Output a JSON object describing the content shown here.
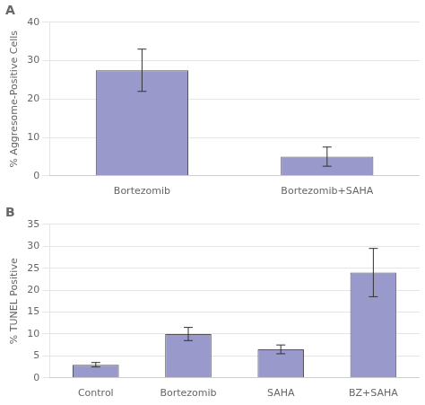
{
  "chart_data": [
    {
      "type": "bar",
      "title": "A",
      "categories": [
        "Bortezomib",
        "Bortezomib+SAHA"
      ],
      "values": [
        27.5,
        5.0
      ],
      "errors": [
        5.5,
        2.5
      ],
      "ylabel": "% Aggresome-Positive Cells",
      "color": "#9999cc",
      "ylim": [
        0,
        40
      ],
      "yticks": [
        0,
        10,
        20,
        30,
        40
      ],
      "grid": true
    },
    {
      "type": "bar",
      "title": "B",
      "categories": [
        "Control",
        "Bortezomib",
        "SAHA",
        "BZ+SAHA"
      ],
      "values": [
        3.0,
        10.0,
        6.5,
        24.0
      ],
      "errors": [
        0.5,
        1.5,
        1.0,
        5.5
      ],
      "ylabel": "% TUNEL Positive",
      "color": "#9999cc",
      "ylim": [
        0,
        35
      ],
      "yticks": [
        0,
        5,
        10,
        15,
        20,
        25,
        30,
        35
      ],
      "grid": true
    }
  ]
}
